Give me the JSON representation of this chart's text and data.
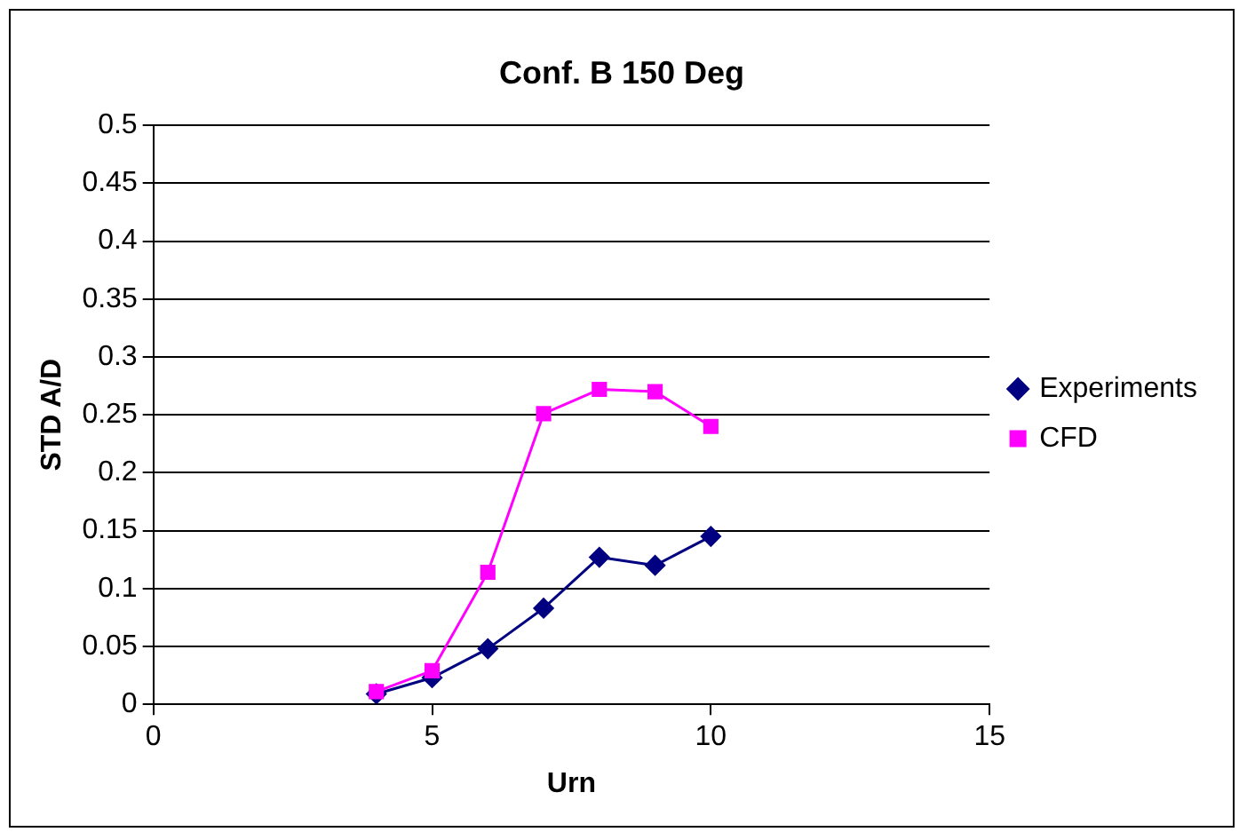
{
  "chart_data": {
    "type": "line",
    "title": "Conf. B 150 Deg",
    "xlabel": "Urn",
    "ylabel": "STD A/D",
    "x": [
      4,
      5,
      6,
      7,
      8,
      9,
      10
    ],
    "series": [
      {
        "name": "Experiments",
        "color": "#000080",
        "marker": "diamond",
        "values": [
          0.009,
          0.023,
          0.048,
          0.083,
          0.127,
          0.12,
          0.145
        ]
      },
      {
        "name": "CFD",
        "color": "#ff00ff",
        "marker": "square",
        "values": [
          0.011,
          0.029,
          0.114,
          0.251,
          0.272,
          0.27,
          0.24
        ]
      }
    ],
    "xlim": [
      0,
      15
    ],
    "xticks": [
      0,
      5,
      10,
      15
    ],
    "ylim": [
      0,
      0.5
    ],
    "yticks": [
      0,
      0.05,
      0.1,
      0.15,
      0.2,
      0.25,
      0.3,
      0.35,
      0.4,
      0.45,
      0.5
    ],
    "grid": "y",
    "legend": "right",
    "line_style": "solid"
  }
}
